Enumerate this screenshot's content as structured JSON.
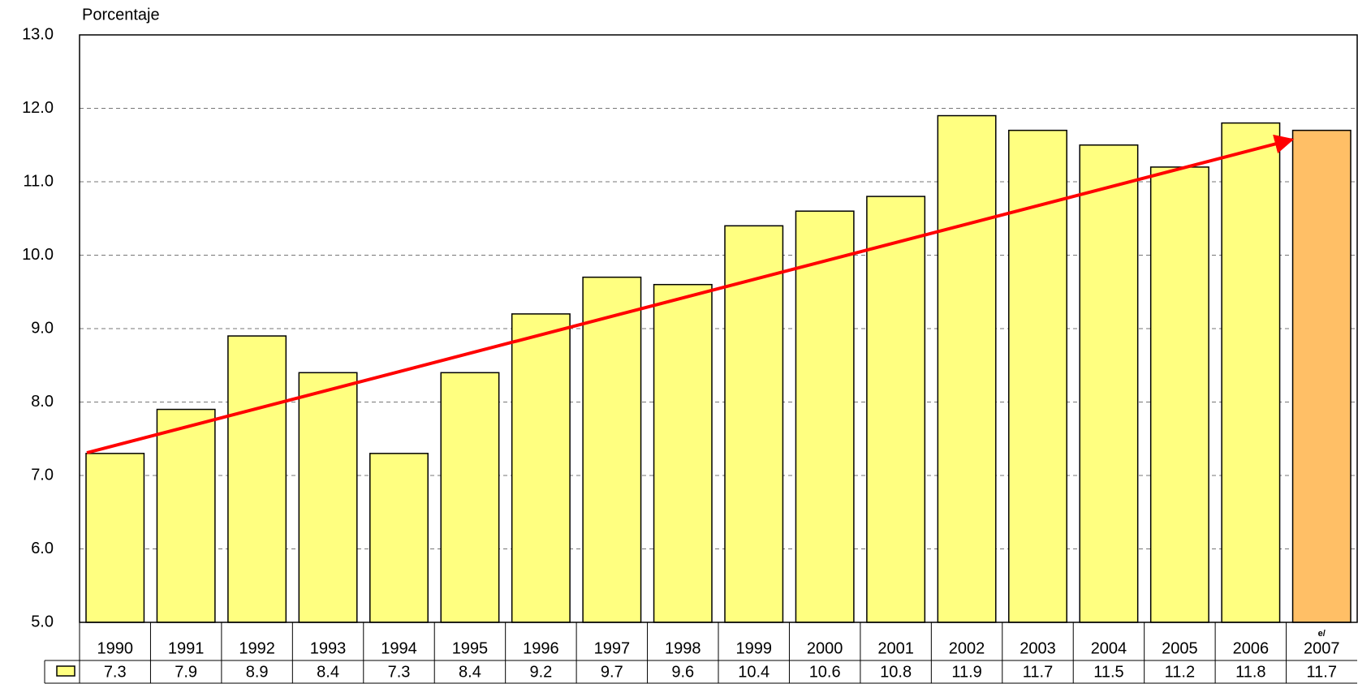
{
  "chart_data": {
    "type": "bar",
    "y_axis_label": "Porcentaje",
    "categories": [
      "1990",
      "1991",
      "1992",
      "1993",
      "1994",
      "1995",
      "1996",
      "1997",
      "1998",
      "1999",
      "2000",
      "2001",
      "2002",
      "2003",
      "2004",
      "2005",
      "2006",
      "2007"
    ],
    "values": [
      7.3,
      7.9,
      8.9,
      8.4,
      7.3,
      8.4,
      9.2,
      9.7,
      9.6,
      10.4,
      10.6,
      10.8,
      11.9,
      11.7,
      11.5,
      11.2,
      11.8,
      11.7
    ],
    "colors": [
      "#ffff80",
      "#ffff80",
      "#ffff80",
      "#ffff80",
      "#ffff80",
      "#ffff80",
      "#ffff80",
      "#ffff80",
      "#ffff80",
      "#ffff80",
      "#ffff80",
      "#ffff80",
      "#ffff80",
      "#ffff80",
      "#ffff80",
      "#ffff80",
      "#ffff80",
      "#ffbf66"
    ],
    "annotation": "e/",
    "ylim": [
      5,
      13
    ],
    "yticks": [
      {
        "value": 5,
        "label": "5.0"
      },
      {
        "value": 6,
        "label": "6.0"
      },
      {
        "value": 7,
        "label": "7.0"
      },
      {
        "value": 8,
        "label": "8.0"
      },
      {
        "value": 9,
        "label": "9.0"
      },
      {
        "value": 10,
        "label": "10.0"
      },
      {
        "value": 11,
        "label": "11.0"
      },
      {
        "value": 12,
        "label": "12.0"
      },
      {
        "value": 13,
        "label": "13.0"
      }
    ],
    "grid": true
  }
}
